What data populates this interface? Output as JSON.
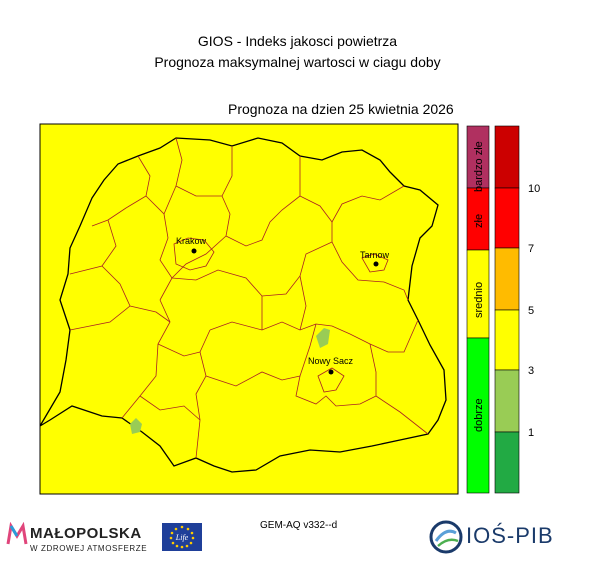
{
  "header": {
    "title_line1": "GIOS - Indeks jakosci powietrza",
    "title_line2": "Prognoza maksymalnej wartosci w ciagu doby",
    "forecast_date": "Prognoza na dzien  25 kwietnia 2026"
  },
  "map": {
    "fill_color": "#ffff00",
    "cities": [
      {
        "name": "Krakow"
      },
      {
        "name": "Tarnow"
      },
      {
        "name": "Nowy Sacz"
      }
    ]
  },
  "legend": {
    "categories": [
      {
        "label": "bardzo złe",
        "color": "#b03060"
      },
      {
        "label": "złe",
        "color": "#ff0000"
      },
      {
        "label": "srednio",
        "color": "#ffff00"
      },
      {
        "label": "dobrze",
        "color": "#00ff00"
      }
    ],
    "scale": [
      {
        "color": "#cc0000"
      },
      {
        "color": "#ff0000"
      },
      {
        "color": "#ffbb00"
      },
      {
        "color": "#ffff00"
      },
      {
        "color": "#99cc55"
      },
      {
        "color": "#22aa44"
      }
    ],
    "tick_labels": [
      "10",
      "7",
      "5",
      "3",
      "1"
    ]
  },
  "footer": {
    "model": "GEM-AQ v332--d",
    "malopolska_word": "MAŁOPOLSKA",
    "malopolska_sub": "W ZDROWEJ ATMOSFERZE",
    "eu_text": "Life",
    "ios_word": "IOŚ-PIB"
  }
}
